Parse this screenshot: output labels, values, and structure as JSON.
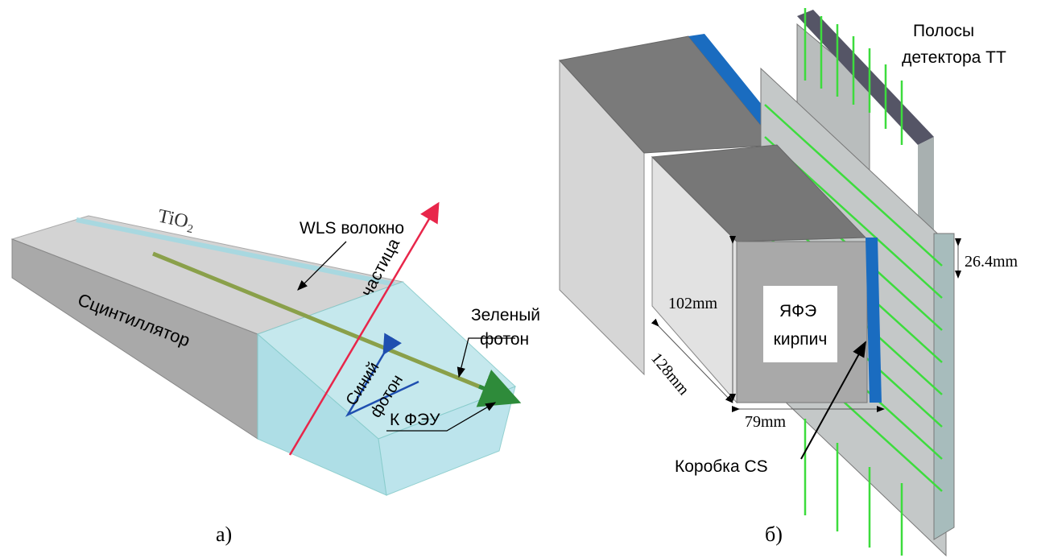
{
  "panel_a": {
    "tio2": "TiO₂",
    "fiber": "WLS волокно",
    "particle": "частица",
    "green_photon": [
      "Зеленый",
      "фотон"
    ],
    "scintillator": "Сцинтиллятор",
    "blue_photon": [
      "Синий",
      "фотон"
    ],
    "pmt": "К ФЭУ",
    "caption": "а)"
  },
  "panel_b": {
    "tt_strips": [
      "Полосы",
      "детектора ТТ"
    ],
    "strip_width": "26.4mm",
    "height": "102mm",
    "brick": [
      "ЯФЭ",
      "кирпич"
    ],
    "depth": "128mm",
    "width": "79mm",
    "cs_box": "Коробка CS",
    "caption": "б)"
  }
}
